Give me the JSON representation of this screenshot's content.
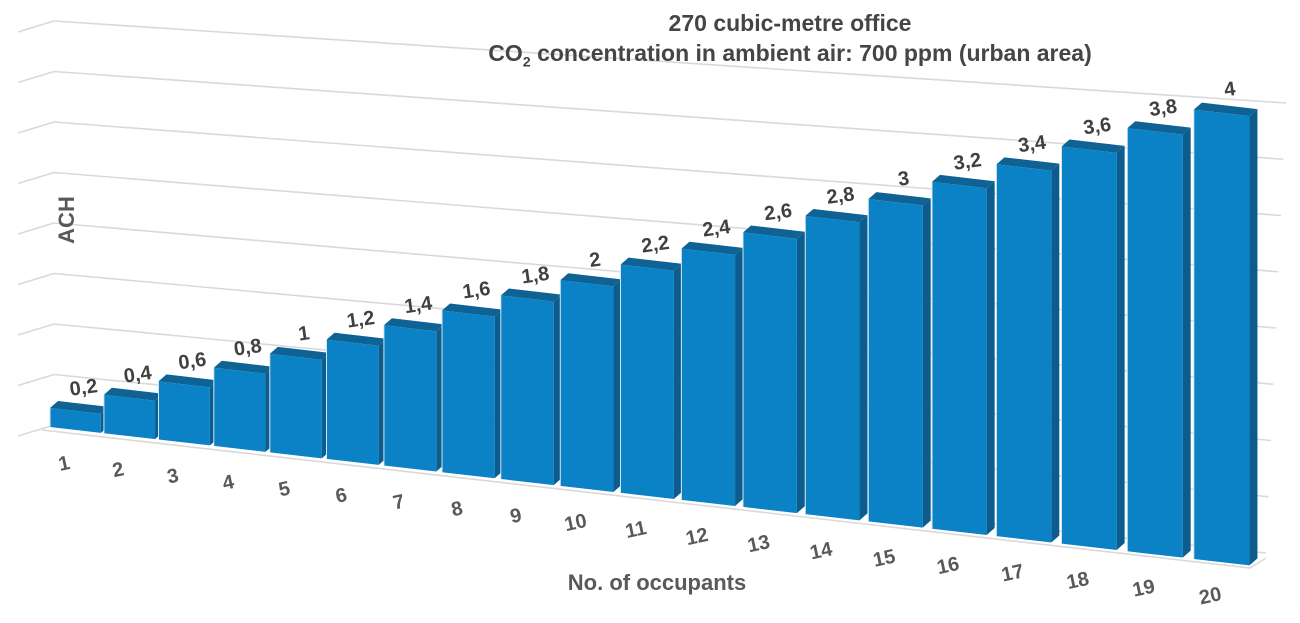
{
  "title": {
    "line1": "270 cubic-metre office",
    "line2_prefix": "CO",
    "line2_sub": "2",
    "line2_rest": " concentration in ambient air: 700 ppm (urban area)"
  },
  "chart_data": {
    "type": "bar",
    "style": "3d-column-perspective",
    "title": "270 cubic-metre office — CO2 concentration in ambient air: 700 ppm (urban area)",
    "xlabel": "No. of occupants",
    "ylabel": "ACH",
    "categories": [
      1,
      2,
      3,
      4,
      5,
      6,
      7,
      8,
      9,
      10,
      11,
      12,
      13,
      14,
      15,
      16,
      17,
      18,
      19,
      20
    ],
    "values": [
      0.2,
      0.4,
      0.6,
      0.8,
      1.0,
      1.2,
      1.4,
      1.6,
      1.8,
      2.0,
      2.2,
      2.4,
      2.6,
      2.8,
      3.0,
      3.2,
      3.4,
      3.6,
      3.8,
      4.0
    ],
    "data_labels": [
      "0,2",
      "0,4",
      "0,6",
      "0,8",
      "1",
      "1,2",
      "1,4",
      "1,6",
      "1,8",
      "2",
      "2,2",
      "2,4",
      "2,6",
      "2,8",
      "3",
      "3,2",
      "3,4",
      "3,6",
      "3,8",
      "4"
    ],
    "decimal_separator": ",",
    "ylim": [
      0,
      4
    ],
    "y_gridline_step": 0.5,
    "grid": true,
    "legend_position": "none",
    "colors": {
      "bar_front": "#0b82c6",
      "bar_top": "#0e6394",
      "bar_side": "#0c5d8d",
      "bar_left_edge": "#d6e4f0",
      "gridline": "#d9d9d9",
      "data_label": "#404040",
      "axis_text": "#595959",
      "background": "#ffffff"
    }
  }
}
